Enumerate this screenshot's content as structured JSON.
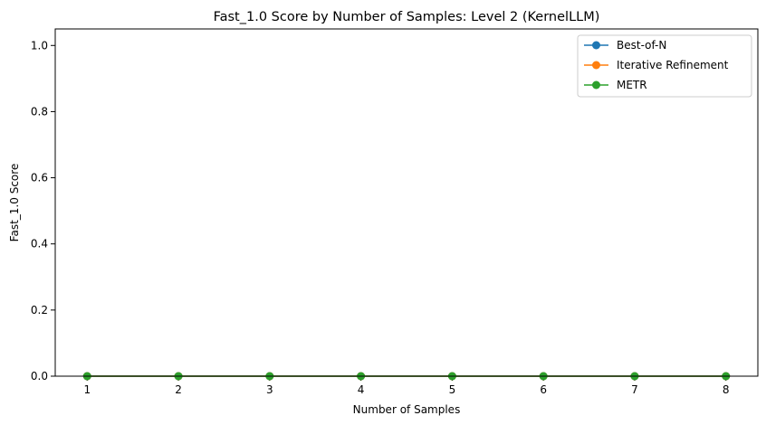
{
  "chart_data": {
    "type": "line",
    "title": "Fast_1.0 Score by Number of Samples: Level 2 (KernelLLM)",
    "xlabel": "Number of Samples",
    "ylabel": "Fast_1.0 Score",
    "x": [
      1,
      2,
      3,
      4,
      5,
      6,
      7,
      8
    ],
    "xlim": [
      0.65,
      8.35
    ],
    "ylim": [
      0,
      1.05
    ],
    "xticks": [
      "1",
      "2",
      "3",
      "4",
      "5",
      "6",
      "7",
      "8"
    ],
    "yticks": [
      "0.0",
      "0.2",
      "0.4",
      "0.6",
      "0.8",
      "1.0"
    ],
    "grid": false,
    "legend_position": "top-right",
    "series": [
      {
        "name": "Best-of-N",
        "color": "#1f77b4",
        "values": [
          0,
          0,
          0,
          0,
          0,
          0,
          0,
          0
        ]
      },
      {
        "name": "Iterative Refinement",
        "color": "#ff7f0e",
        "values": [
          0,
          0,
          0,
          0,
          0,
          0,
          0,
          0
        ]
      },
      {
        "name": "METR",
        "color": "#2ca02c",
        "values": [
          0,
          0,
          0,
          0,
          0,
          0,
          0,
          0
        ]
      }
    ]
  }
}
